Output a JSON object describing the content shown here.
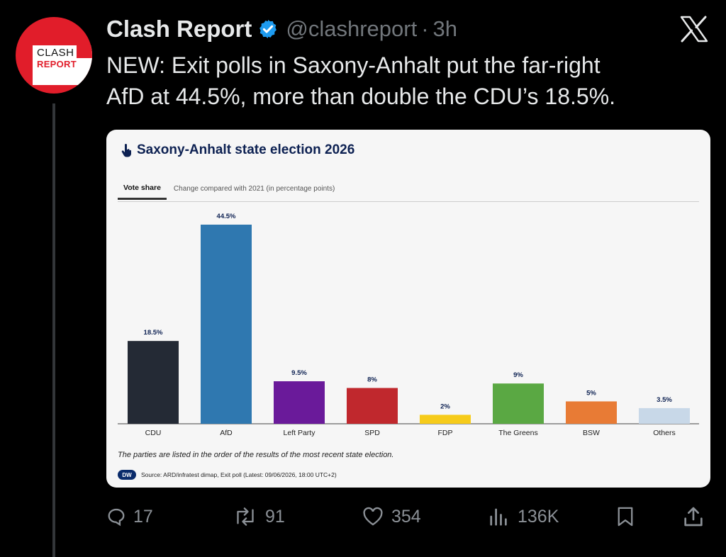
{
  "avatar": {
    "line1": "CLASH",
    "line2": "REPORT"
  },
  "tweet": {
    "display_name": "Clash Report",
    "handle": "@clashreport",
    "separator": "·",
    "time": "3h",
    "text_line1": "NEW: Exit polls in Saxony-Anhalt put the far-right",
    "text_line2": "AfD at 44.5%, more than double the CDU’s 18.5%."
  },
  "card": {
    "title": "Saxony-Anhalt state election 2026",
    "tab_active": "Vote share",
    "tab_inactive": "Change compared with 2021 (in percentage points)",
    "footnote": "The parties are listed in the order of the results of the most recent state election.",
    "source_logo": "DW",
    "source": "Source: ARD/infratest dimap, Exit poll (Latest: 09/06/2026, 18:00 UTC+2)"
  },
  "chart_data": {
    "type": "bar",
    "title": "Saxony-Anhalt state election 2026",
    "xlabel": "",
    "ylabel": "",
    "ylim": [
      0,
      44.5
    ],
    "grid": false,
    "categories": [
      "CDU",
      "AfD",
      "Left Party",
      "SPD",
      "FDP",
      "The Greens",
      "BSW",
      "Others"
    ],
    "values": [
      18.5,
      44.5,
      9.5,
      8,
      2,
      9,
      5,
      3.5
    ],
    "value_labels": [
      "18.5%",
      "44.5%",
      "9.5%",
      "8%",
      "2%",
      "9%",
      "5%",
      "3.5%"
    ],
    "colors": [
      "#242a35",
      "#2f78b0",
      "#6a1a9a",
      "#c0282d",
      "#f6cb1a",
      "#5aa843",
      "#e87b35",
      "#c8d8e8"
    ]
  },
  "actions": {
    "replies": "17",
    "reposts": "91",
    "likes": "354",
    "views": "136K"
  },
  "icons": {
    "verified": "verified-badge-icon",
    "x": "x-logo-icon",
    "reply": "reply-icon",
    "repost": "repost-icon",
    "like": "heart-icon",
    "views": "views-icon",
    "bookmark": "bookmark-icon",
    "share": "share-icon"
  },
  "colors": {
    "accent": "#1d9bf0",
    "muted": "#71767b",
    "brand_red": "#e11d2a"
  }
}
